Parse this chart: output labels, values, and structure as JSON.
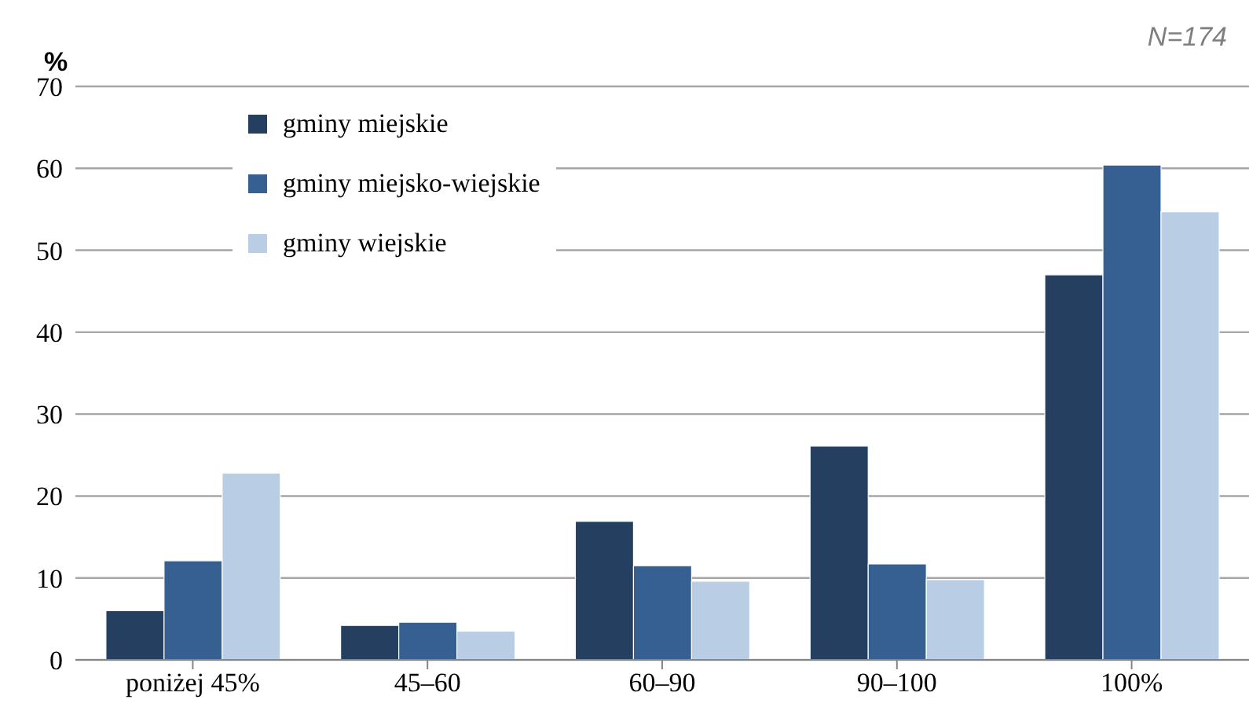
{
  "chart_data": {
    "type": "bar",
    "ylabel": "%",
    "annotations": [
      "N=174"
    ],
    "categories": [
      "poniżej 45%",
      "45–60",
      "60–90",
      "90–100",
      "100%"
    ],
    "series": [
      {
        "name": "gminy miejskie",
        "color": "#253f60",
        "values": [
          6,
          4.2,
          16.9,
          26.1,
          47
        ]
      },
      {
        "name": "gminy miejsko-wiejskie",
        "color": "#366092",
        "values": [
          12.1,
          4.6,
          11.5,
          11.7,
          60.4
        ]
      },
      {
        "name": "gminy wiejskie",
        "color": "#b9cde5",
        "values": [
          22.8,
          3.5,
          9.6,
          9.8,
          54.7
        ]
      }
    ],
    "ylim": [
      0,
      70
    ],
    "yticks": [
      0,
      10,
      20,
      30,
      40,
      50,
      60,
      70
    ],
    "grid": "y",
    "legend": "top left"
  }
}
